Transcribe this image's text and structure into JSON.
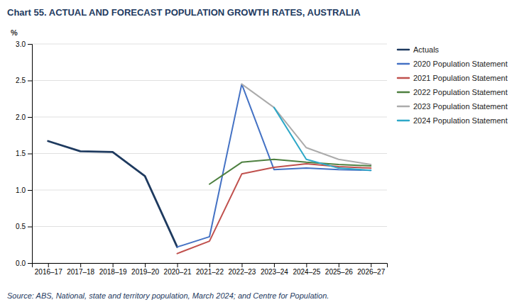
{
  "chart_data": {
    "type": "line",
    "title": "Chart 55. ACTUAL AND FORECAST POPULATION GROWTH RATES, AUSTRALIA",
    "y_label": "%",
    "annotations": [
      "Source: ABS, National, state and territory population, March 2024; and Centre for Population."
    ],
    "categories": [
      "2016–17",
      "2017–18",
      "2018–19",
      "2019–20",
      "2020–21",
      "2021–22",
      "2022–23",
      "2023–24",
      "2024–25",
      "2025–26",
      "2026–27"
    ],
    "series": [
      {
        "name": "Actuals",
        "color": "#1e3a5f",
        "values": [
          1.67,
          1.53,
          1.52,
          1.19,
          0.22,
          null,
          null,
          null,
          null,
          null,
          null
        ]
      },
      {
        "name": "2020 Population Statement",
        "color": "#4472c4",
        "values": [
          null,
          null,
          null,
          null,
          0.22,
          0.36,
          2.45,
          1.28,
          1.3,
          1.28,
          1.27
        ]
      },
      {
        "name": "2021 Population Statement",
        "color": "#c0504d",
        "values": [
          null,
          null,
          null,
          null,
          0.13,
          0.3,
          1.22,
          1.31,
          1.36,
          1.32,
          1.3
        ]
      },
      {
        "name": "2022 Population Statement",
        "color": "#4e8040",
        "values": [
          null,
          null,
          null,
          null,
          null,
          1.08,
          1.38,
          1.42,
          1.38,
          1.35,
          1.33
        ]
      },
      {
        "name": "2023 Population Statement",
        "color": "#ababab",
        "values": [
          null,
          null,
          null,
          null,
          null,
          null,
          2.45,
          2.13,
          1.58,
          1.42,
          1.35
        ]
      },
      {
        "name": "2024 Population Statement",
        "color": "#2ea8c8",
        "values": [
          null,
          null,
          null,
          null,
          null,
          null,
          null,
          2.13,
          1.42,
          1.3,
          1.27
        ]
      }
    ],
    "ylim": [
      0.0,
      3.0
    ],
    "yticks": [
      {
        "value": 0,
        "label": "0.0"
      },
      0.5,
      {
        "value": 1,
        "label": "1.0"
      },
      1.5,
      {
        "value": 2,
        "label": "2.0"
      },
      2.5,
      {
        "value": 3,
        "label": "3.0"
      }
    ],
    "grid": true,
    "legend": "right"
  }
}
